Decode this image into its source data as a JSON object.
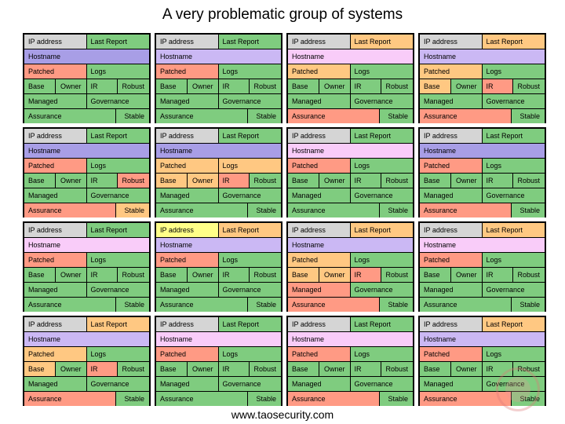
{
  "title": "A very problematic group of systems",
  "footer": "www.taosecurity.com",
  "colors": {
    "gray": "#d5d5d5",
    "green": "#7fcc7f",
    "orange": "#ffc882",
    "red": "#ff9a84",
    "purple": "#a89ee6",
    "lavender": "#cbb8f4",
    "pink": "#f9ccf9",
    "yellow": "#ffff88"
  },
  "labels": {
    "ip": "IP address",
    "last_report": "Last Report",
    "hostname": "Hostname",
    "patched": "Patched",
    "logs": "Logs",
    "base": "Base",
    "owner": "Owner",
    "ir": "IR",
    "robust": "Robust",
    "managed": "Managed",
    "governance": "Governance",
    "assurance": "Assurance",
    "stable": "Stable"
  },
  "systems": [
    {
      "ip": "gray",
      "last_report": "green",
      "hostname": "purple",
      "patched": "red",
      "logs": "green",
      "base": "green",
      "owner": "green",
      "ir": "green",
      "robust": "green",
      "managed": "green",
      "governance": "green",
      "assurance": "green",
      "stable": "green"
    },
    {
      "ip": "gray",
      "last_report": "green",
      "hostname": "lavender",
      "patched": "red",
      "logs": "green",
      "base": "green",
      "owner": "green",
      "ir": "green",
      "robust": "green",
      "managed": "green",
      "governance": "green",
      "assurance": "green",
      "stable": "green"
    },
    {
      "ip": "gray",
      "last_report": "orange",
      "hostname": "pink",
      "patched": "orange",
      "logs": "green",
      "base": "green",
      "owner": "green",
      "ir": "green",
      "robust": "green",
      "managed": "green",
      "governance": "green",
      "assurance": "red",
      "stable": "green"
    },
    {
      "ip": "gray",
      "last_report": "orange",
      "hostname": "lavender",
      "patched": "orange",
      "logs": "green",
      "base": "orange",
      "owner": "green",
      "ir": "red",
      "robust": "green",
      "managed": "green",
      "governance": "green",
      "assurance": "red",
      "stable": "green"
    },
    {
      "ip": "gray",
      "last_report": "green",
      "hostname": "purple",
      "patched": "red",
      "logs": "green",
      "base": "green",
      "owner": "green",
      "ir": "green",
      "robust": "red",
      "managed": "green",
      "governance": "green",
      "assurance": "red",
      "stable": "orange"
    },
    {
      "ip": "gray",
      "last_report": "green",
      "hostname": "purple",
      "patched": "orange",
      "logs": "orange",
      "base": "orange",
      "owner": "orange",
      "ir": "red",
      "robust": "green",
      "managed": "green",
      "governance": "green",
      "assurance": "green",
      "stable": "green"
    },
    {
      "ip": "gray",
      "last_report": "green",
      "hostname": "pink",
      "patched": "red",
      "logs": "green",
      "base": "green",
      "owner": "green",
      "ir": "green",
      "robust": "green",
      "managed": "green",
      "governance": "green",
      "assurance": "green",
      "stable": "green"
    },
    {
      "ip": "gray",
      "last_report": "green",
      "hostname": "purple",
      "patched": "red",
      "logs": "green",
      "base": "green",
      "owner": "green",
      "ir": "green",
      "robust": "green",
      "managed": "green",
      "governance": "green",
      "assurance": "red",
      "stable": "green"
    },
    {
      "ip": "gray",
      "last_report": "green",
      "hostname": "pink",
      "patched": "red",
      "logs": "green",
      "base": "green",
      "owner": "green",
      "ir": "green",
      "robust": "green",
      "managed": "green",
      "governance": "green",
      "assurance": "green",
      "stable": "green"
    },
    {
      "ip": "yellow",
      "last_report": "orange",
      "hostname": "lavender",
      "patched": "red",
      "logs": "green",
      "base": "green",
      "owner": "green",
      "ir": "green",
      "robust": "green",
      "managed": "green",
      "governance": "green",
      "assurance": "green",
      "stable": "green"
    },
    {
      "ip": "gray",
      "last_report": "orange",
      "hostname": "lavender",
      "patched": "orange",
      "logs": "green",
      "base": "orange",
      "owner": "orange",
      "ir": "red",
      "robust": "green",
      "managed": "red",
      "governance": "green",
      "assurance": "red",
      "stable": "green"
    },
    {
      "ip": "gray",
      "last_report": "orange",
      "hostname": "pink",
      "patched": "red",
      "logs": "green",
      "base": "green",
      "owner": "green",
      "ir": "green",
      "robust": "green",
      "managed": "green",
      "governance": "green",
      "assurance": "green",
      "stable": "green"
    },
    {
      "ip": "gray",
      "last_report": "orange",
      "hostname": "lavender",
      "patched": "orange",
      "logs": "green",
      "base": "orange",
      "owner": "green",
      "ir": "red",
      "robust": "green",
      "managed": "green",
      "governance": "green",
      "assurance": "red",
      "stable": "green"
    },
    {
      "ip": "gray",
      "last_report": "green",
      "hostname": "pink",
      "patched": "red",
      "logs": "green",
      "base": "green",
      "owner": "green",
      "ir": "green",
      "robust": "green",
      "managed": "green",
      "governance": "green",
      "assurance": "green",
      "stable": "green"
    },
    {
      "ip": "gray",
      "last_report": "green",
      "hostname": "pink",
      "patched": "red",
      "logs": "green",
      "base": "green",
      "owner": "green",
      "ir": "green",
      "robust": "green",
      "managed": "green",
      "governance": "green",
      "assurance": "red",
      "stable": "green"
    },
    {
      "ip": "gray",
      "last_report": "orange",
      "hostname": "lavender",
      "patched": "red",
      "logs": "green",
      "base": "green",
      "owner": "green",
      "ir": "green",
      "robust": "green",
      "managed": "green",
      "governance": "green",
      "assurance": "red",
      "stable": "green"
    }
  ]
}
